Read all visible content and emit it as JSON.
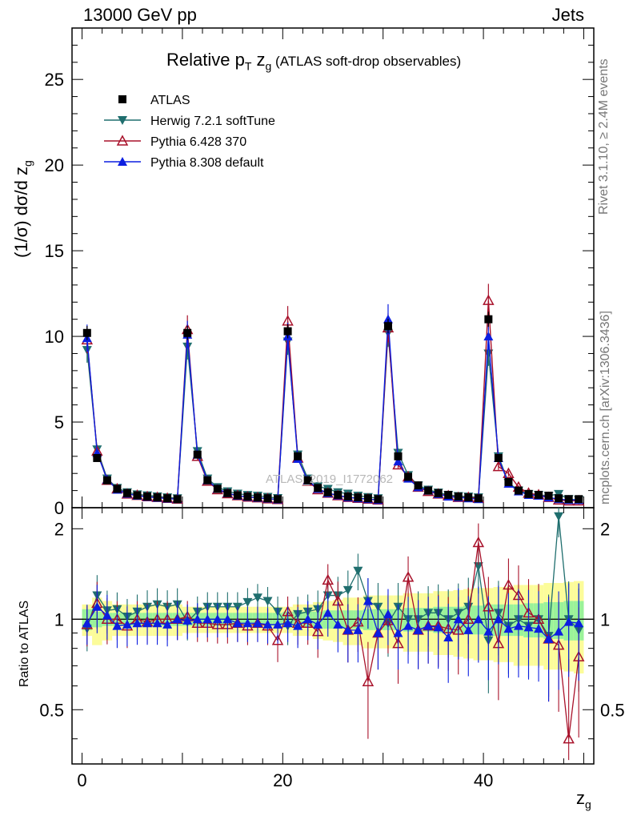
{
  "header": {
    "left": "13000 GeV pp",
    "right": "Jets"
  },
  "side_labels": {
    "rivet": "Rivet 3.1.10, ≥ 2.4M events",
    "mcplots": "mcplots.cern.ch [arXiv:1306.3436]"
  },
  "watermark": "ATLAS_2019_I1772062",
  "chart_data": {
    "type": "line",
    "title_parts": {
      "main": "Relative p",
      "sub": "T",
      "mid": " z",
      "sub2": "g",
      "tail": " (ATLAS soft-drop observables)"
    },
    "ylabel": "(1/σ) dσ/d z",
    "ylabel_sub": "g",
    "xlabel": "z",
    "xlabel_sub": "g",
    "ratio_ylabel": "Ratio to ATLAS",
    "xlim": [
      -1,
      51
    ],
    "ylim": [
      0,
      28
    ],
    "ratio_ylim": [
      0.33,
      2.35
    ],
    "x_ticks": [
      "0",
      "20",
      "40"
    ],
    "y_ticks": [
      "0",
      "5",
      "10",
      "15",
      "20",
      "25"
    ],
    "ratio_ticks": [
      "0.5",
      "1",
      "2"
    ],
    "legend_position": "top-left",
    "x": [
      0.5,
      1.5,
      2.5,
      3.5,
      4.5,
      5.5,
      6.5,
      7.5,
      8.5,
      9.5,
      10.5,
      11.5,
      12.5,
      13.5,
      14.5,
      15.5,
      16.5,
      17.5,
      18.5,
      19.5,
      20.5,
      21.5,
      22.5,
      23.5,
      24.5,
      25.5,
      26.5,
      27.5,
      28.5,
      29.5,
      30.5,
      31.5,
      32.5,
      33.5,
      34.5,
      35.5,
      36.5,
      37.5,
      38.5,
      39.5,
      40.5,
      41.5,
      42.5,
      43.5,
      44.5,
      45.5,
      46.5,
      47.5,
      48.5,
      49.5
    ],
    "series": [
      {
        "name": "ATLAS",
        "color": "#000000",
        "marker": "square",
        "values": [
          10.2,
          2.9,
          1.6,
          1.1,
          0.85,
          0.72,
          0.65,
          0.6,
          0.55,
          0.5,
          10.2,
          3.1,
          1.6,
          1.1,
          0.85,
          0.72,
          0.65,
          0.6,
          0.55,
          0.5,
          10.3,
          3.0,
          1.6,
          1.15,
          0.9,
          0.75,
          0.65,
          0.6,
          0.55,
          0.5,
          10.6,
          3.0,
          1.8,
          1.3,
          1.0,
          0.85,
          0.75,
          0.65,
          0.6,
          0.55,
          11.0,
          2.9,
          1.5,
          1.0,
          0.8,
          0.75,
          0.7,
          0.55,
          0.5,
          0.5
        ]
      },
      {
        "name": "Herwig 7.2.1 softTune",
        "color": "#1f6e6e",
        "marker": "triangle-down",
        "values": [
          9.2,
          3.4,
          1.7,
          1.15,
          0.9,
          0.78,
          0.72,
          0.66,
          0.6,
          0.55,
          9.4,
          3.3,
          1.7,
          1.2,
          0.95,
          0.82,
          0.74,
          0.7,
          0.63,
          0.56,
          9.7,
          3.1,
          1.7,
          1.25,
          1.1,
          0.9,
          0.82,
          0.7,
          0.62,
          0.55,
          10.2,
          3.2,
          1.9,
          1.3,
          1.05,
          0.88,
          0.75,
          0.68,
          0.65,
          0.6,
          9.0,
          3.0,
          1.45,
          1.0,
          0.8,
          0.75,
          0.7,
          0.8,
          0.5,
          0.45
        ]
      },
      {
        "name": "Pythia 6.428 370",
        "color": "#a8112a",
        "marker": "triangle-open",
        "values": [
          9.8,
          3.3,
          1.6,
          1.1,
          0.8,
          0.72,
          0.64,
          0.6,
          0.55,
          0.5,
          10.4,
          3.0,
          1.55,
          1.05,
          0.82,
          0.7,
          0.62,
          0.58,
          0.52,
          0.48,
          10.9,
          2.9,
          1.55,
          1.05,
          0.85,
          0.7,
          0.6,
          0.55,
          0.5,
          0.45,
          10.5,
          2.5,
          1.8,
          1.2,
          0.95,
          0.8,
          0.7,
          0.6,
          0.6,
          0.55,
          12.1,
          2.4,
          2.0,
          1.2,
          0.85,
          0.75,
          0.6,
          0.45,
          0.4,
          0.4
        ]
      },
      {
        "name": "Pythia 8.308 default",
        "color": "#0c1ee0",
        "marker": "triangle-up",
        "values": [
          9.9,
          3.2,
          1.65,
          1.05,
          0.82,
          0.7,
          0.63,
          0.58,
          0.53,
          0.5,
          10.1,
          3.1,
          1.6,
          1.1,
          0.85,
          0.7,
          0.63,
          0.58,
          0.53,
          0.48,
          10.0,
          2.85,
          1.6,
          1.1,
          0.85,
          0.72,
          0.6,
          0.55,
          0.5,
          0.45,
          11.0,
          2.7,
          1.7,
          1.2,
          1.0,
          0.8,
          0.65,
          0.6,
          0.55,
          0.5,
          10.0,
          2.9,
          1.4,
          0.95,
          0.75,
          0.7,
          0.6,
          0.5,
          0.45,
          0.45
        ]
      }
    ],
    "ratio_series": [
      {
        "name": "Herwig 7.2.1 softTune",
        "values": [
          0.93,
          1.2,
          1.07,
          1.08,
          1.02,
          1.06,
          1.1,
          1.12,
          1.1,
          1.12,
          0.98,
          1.06,
          1.1,
          1.1,
          1.1,
          1.1,
          1.14,
          1.18,
          1.15,
          1.06,
          0.95,
          1.04,
          1.06,
          1.08,
          1.2,
          1.2,
          1.25,
          1.45,
          1.15,
          1.1,
          0.97,
          1.1,
          1.0,
          1.0,
          1.05,
          1.05,
          1.0,
          1.05,
          1.1,
          1.5,
          0.85,
          1.05,
          0.95,
          1.0,
          0.95,
          1.0,
          0.88,
          2.2,
          1.0,
          0.92
        ]
      },
      {
        "name": "Pythia 6.428 370",
        "values": [
          0.96,
          1.13,
          1.0,
          1.0,
          0.95,
          1.0,
          0.98,
          1.0,
          1.0,
          1.0,
          1.02,
          0.97,
          0.97,
          0.96,
          0.96,
          0.97,
          0.95,
          0.97,
          0.95,
          0.85,
          1.06,
          0.97,
          0.97,
          0.91,
          1.35,
          1.15,
          0.92,
          0.98,
          0.62,
          0.9,
          0.99,
          0.83,
          1.38,
          0.92,
          0.95,
          0.95,
          0.93,
          0.92,
          1.0,
          1.8,
          1.1,
          0.83,
          1.3,
          1.2,
          1.05,
          1.0,
          0.86,
          0.82,
          0.4,
          0.75
        ]
      },
      {
        "name": "Pythia 8.308 default",
        "values": [
          0.97,
          1.1,
          1.03,
          0.95,
          0.96,
          0.97,
          0.97,
          0.97,
          0.96,
          1.0,
          0.99,
          1.0,
          1.0,
          1.0,
          1.0,
          0.97,
          0.97,
          0.97,
          0.96,
          0.96,
          0.97,
          0.95,
          1.0,
          0.96,
          1.05,
          0.96,
          0.92,
          0.92,
          1.15,
          0.9,
          1.04,
          0.9,
          0.95,
          0.92,
          0.95,
          0.94,
          0.87,
          1.0,
          0.92,
          1.0,
          0.91,
          1.0,
          0.93,
          0.95,
          0.94,
          0.93,
          0.86,
          0.91,
          0.98,
          0.97
        ]
      }
    ],
    "ratio_band_inner": [
      0.08,
      0.06,
      0.05,
      0.05,
      0.05,
      0.05,
      0.05,
      0.05,
      0.05,
      0.05,
      0.05,
      0.05,
      0.05,
      0.05,
      0.05,
      0.05,
      0.05,
      0.05,
      0.05,
      0.05,
      0.06,
      0.06,
      0.06,
      0.06,
      0.07,
      0.07,
      0.07,
      0.07,
      0.08,
      0.08,
      0.08,
      0.08,
      0.09,
      0.09,
      0.09,
      0.1,
      0.1,
      0.1,
      0.11,
      0.11,
      0.12,
      0.12,
      0.12,
      0.12,
      0.13,
      0.13,
      0.14,
      0.14,
      0.15,
      0.15
    ],
    "ratio_band_outer": [
      0.12,
      0.18,
      0.15,
      0.12,
      0.12,
      0.12,
      0.12,
      0.12,
      0.12,
      0.12,
      0.1,
      0.1,
      0.1,
      0.1,
      0.1,
      0.1,
      0.1,
      0.1,
      0.1,
      0.1,
      0.1,
      0.12,
      0.12,
      0.14,
      0.15,
      0.16,
      0.18,
      0.18,
      0.2,
      0.2,
      0.2,
      0.2,
      0.22,
      0.22,
      0.22,
      0.24,
      0.24,
      0.25,
      0.26,
      0.27,
      0.27,
      0.28,
      0.28,
      0.3,
      0.3,
      0.3,
      0.32,
      0.32,
      0.33,
      0.34
    ]
  }
}
